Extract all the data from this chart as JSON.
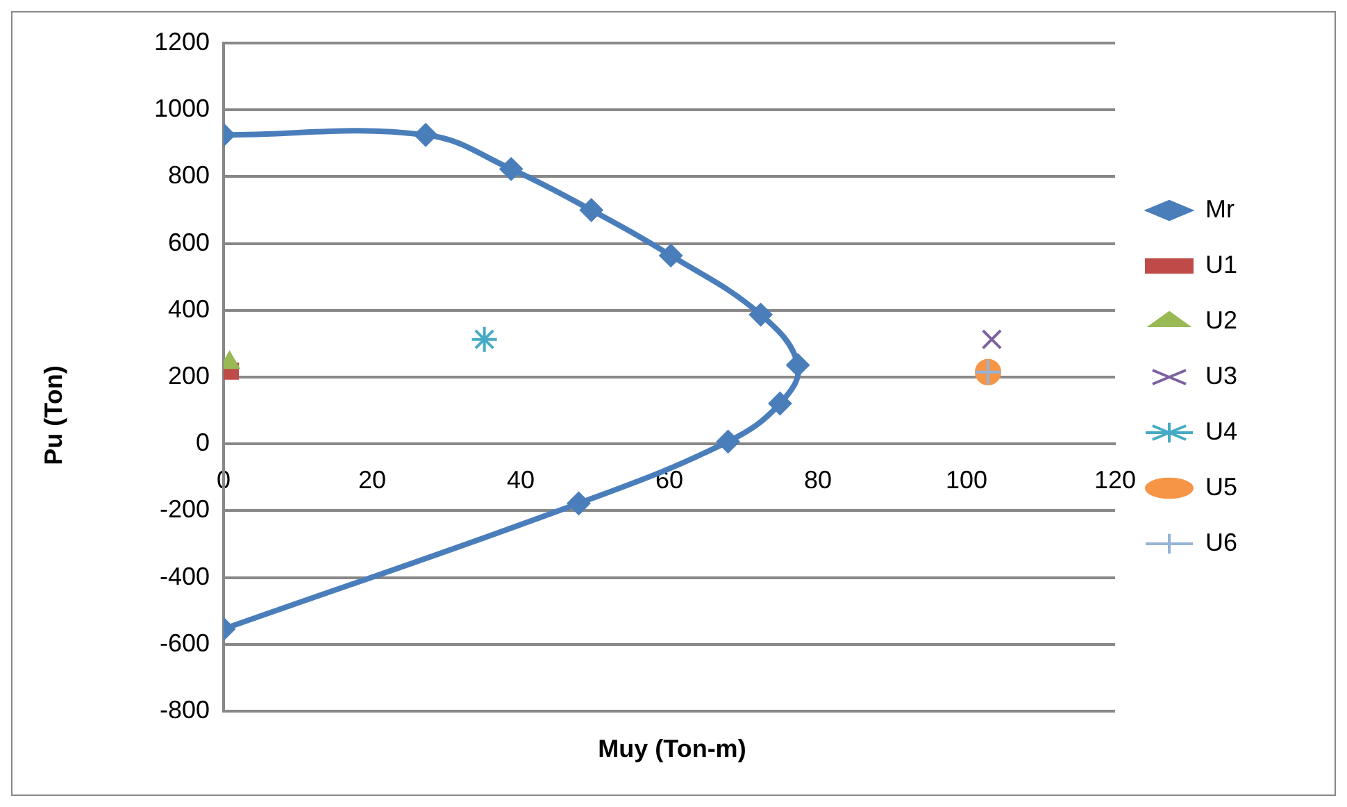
{
  "chart_data": {
    "type": "scatter",
    "xlabel": "Muy (Ton-m)",
    "ylabel": "Pu (Ton)",
    "xlim": [
      0,
      120
    ],
    "xticks": [
      0,
      20,
      40,
      60,
      80,
      100,
      120
    ],
    "ylim": [
      -800,
      1200
    ],
    "yticks": [
      -800,
      -600,
      -400,
      -200,
      0,
      200,
      400,
      600,
      800,
      1000,
      1200
    ],
    "grid": "y",
    "legend": "right",
    "series": [
      {
        "name": "Mr",
        "type": "line",
        "color": "#4a7ebb",
        "marker": "diamond",
        "x": [
          0,
          27.2,
          38.7,
          49.5,
          60.2,
          72.3,
          77.3,
          74.9,
          67.9,
          47.8,
          0
        ],
        "values": [
          925,
          925,
          823,
          700,
          564,
          387,
          236,
          121,
          7,
          -178,
          -554
        ]
      },
      {
        "name": "U1",
        "color": "#be4b48",
        "marker": "square",
        "x": [
          0.9
        ],
        "values": [
          218
        ]
      },
      {
        "name": "U2",
        "color": "#98b954",
        "marker": "triangle",
        "x": [
          0.8
        ],
        "values": [
          243
        ]
      },
      {
        "name": "U3",
        "color": "#7d60a0",
        "marker": "cross",
        "x": [
          103.4
        ],
        "values": [
          313
        ]
      },
      {
        "name": "U4",
        "color": "#46aac5",
        "x": [
          35.1
        ],
        "values": [
          313
        ]
      },
      {
        "name": "U5",
        "color": "#f69546",
        "marker": "circle",
        "x": [
          102.9
        ],
        "values": [
          215
        ]
      },
      {
        "name": "U6",
        "color": "#95b3d7",
        "marker": "plus",
        "x": [
          102.9
        ],
        "values": [
          215
        ]
      }
    ]
  }
}
